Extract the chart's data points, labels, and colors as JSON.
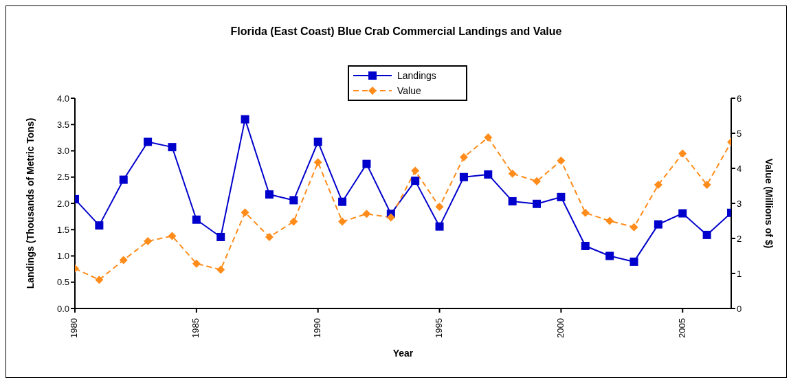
{
  "chart_data": {
    "type": "line",
    "title": "Florida (East Coast) Blue Crab Commercial Landings and Value",
    "xlabel": "Year",
    "ylabel": "Landings (Thousands of Metric Tons)",
    "y2label": "Value (Millions of $)",
    "x": [
      1980,
      1981,
      1982,
      1983,
      1984,
      1985,
      1986,
      1987,
      1988,
      1989,
      1990,
      1991,
      1992,
      1993,
      1994,
      1995,
      1996,
      1997,
      1998,
      1999,
      2000,
      2001,
      2002,
      2003,
      2004,
      2005,
      2006,
      2007
    ],
    "xlim": [
      1980,
      2007
    ],
    "xticks": [
      1980,
      1985,
      1990,
      1995,
      2000,
      2005
    ],
    "ylim": [
      0,
      4
    ],
    "yticks": [
      {
        "value": 0,
        "label": "0.0"
      },
      {
        "value": 0.5,
        "label": "0.5"
      },
      {
        "value": 1,
        "label": "1.0"
      },
      {
        "value": 1.5,
        "label": "1.5"
      },
      {
        "value": 2,
        "label": "2.0"
      },
      {
        "value": 2.5,
        "label": "2.5"
      },
      {
        "value": 3,
        "label": "3.0"
      },
      {
        "value": 3.5,
        "label": "3.5"
      },
      {
        "value": 4,
        "label": "4.0"
      }
    ],
    "y2lim": [
      0,
      6
    ],
    "y2ticks": [
      0,
      1,
      2,
      3,
      4,
      5,
      6
    ],
    "legend": "top",
    "grid": false,
    "series": [
      {
        "name": "Landings",
        "color": "#0000cc",
        "marker": "square",
        "line_style": "solid",
        "values": [
          2.08,
          1.58,
          2.45,
          3.17,
          3.07,
          1.69,
          1.36,
          3.6,
          2.17,
          2.06,
          3.17,
          2.03,
          2.75,
          1.8,
          2.43,
          1.56,
          2.5,
          2.55,
          2.04,
          1.99,
          2.12,
          1.19,
          1.0,
          0.89,
          1.6,
          1.81,
          1.4,
          1.82
        ]
      },
      {
        "name": "Value",
        "color": "#ff8c1a",
        "marker": "diamond",
        "line_style": "dashed",
        "axis": "y2",
        "values": [
          1.14,
          0.82,
          1.38,
          1.92,
          2.07,
          1.28,
          1.11,
          2.74,
          2.04,
          2.48,
          4.17,
          2.48,
          2.7,
          2.6,
          3.93,
          2.9,
          4.32,
          4.88,
          3.85,
          3.63,
          4.22,
          2.73,
          2.5,
          2.32,
          3.53,
          4.42,
          3.53,
          4.75
        ]
      }
    ]
  }
}
